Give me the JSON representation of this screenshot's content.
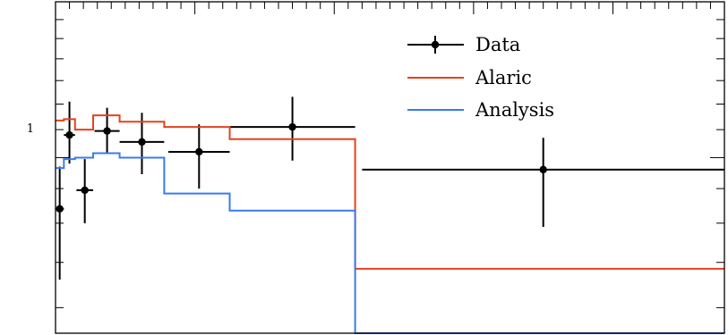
{
  "chart_data": {
    "type": "line",
    "title": "",
    "xlabel": "",
    "ylabel": "",
    "xlim": [
      0,
      24
    ],
    "ylim": [
      0.55,
      1.7
    ],
    "yscale": "log",
    "ytick_labels": [
      {
        "value": 1,
        "label": "1"
      }
    ],
    "grid": false,
    "legend_position": "top-right",
    "colors": {
      "data": "#000000",
      "alaric": "#e8401c",
      "analysis": "#3a7af0"
    },
    "series": [
      {
        "name": "Data",
        "kind": "points",
        "points": [
          {
            "x": 0.15,
            "y": 0.84,
            "xerr": [
              0.15,
              0.15
            ],
            "yerr": [
              0.18,
              0.13
            ]
          },
          {
            "x": 0.5,
            "y": 1.08,
            "xerr": [
              0.2,
              0.2
            ],
            "yerr": [
              0.1,
              0.13
            ]
          },
          {
            "x": 1.05,
            "y": 0.895,
            "xerr": [
              0.3,
              0.3
            ],
            "yerr": [
              0.095,
              0.1
            ]
          },
          {
            "x": 1.85,
            "y": 1.095,
            "xerr": [
              0.45,
              0.45
            ],
            "yerr": [
              0.08,
              0.09
            ]
          },
          {
            "x": 3.1,
            "y": 1.055,
            "xerr": [
              0.8,
              0.8
            ],
            "yerr": [
              0.11,
              0.11
            ]
          },
          {
            "x": 5.15,
            "y": 1.02,
            "xerr": [
              1.1,
              1.1
            ],
            "yerr": [
              0.12,
              0.1
            ]
          },
          {
            "x": 8.5,
            "y": 1.11,
            "xerr": [
              2.25,
              2.25
            ],
            "yerr": [
              0.12,
              0.12
            ]
          },
          {
            "x": 17.5,
            "y": 0.96,
            "xerr": [
              6.5,
              6.5
            ],
            "yerr": [
              0.17,
              0.11
            ]
          }
        ]
      },
      {
        "name": "Alaric",
        "kind": "step",
        "edges": [
          0,
          0.3,
          0.7,
          1.35,
          2.3,
          3.9,
          6.25,
          10.75,
          24
        ],
        "values": [
          1.135,
          1.14,
          1.1,
          1.155,
          1.13,
          1.11,
          1.065,
          0.685
        ]
      },
      {
        "name": "Analysis",
        "kind": "step",
        "edges": [
          0,
          0.3,
          0.7,
          1.35,
          2.3,
          3.9,
          6.25,
          10.75,
          24
        ],
        "values": [
          0.965,
          0.995,
          1.0,
          1.015,
          1.0,
          0.885,
          0.835,
          0.55
        ]
      }
    ]
  },
  "legend": {
    "items": [
      {
        "key": "data",
        "label": "Data"
      },
      {
        "key": "alaric",
        "label": "Alaric"
      },
      {
        "key": "analysis",
        "label": "Analysis"
      }
    ]
  }
}
